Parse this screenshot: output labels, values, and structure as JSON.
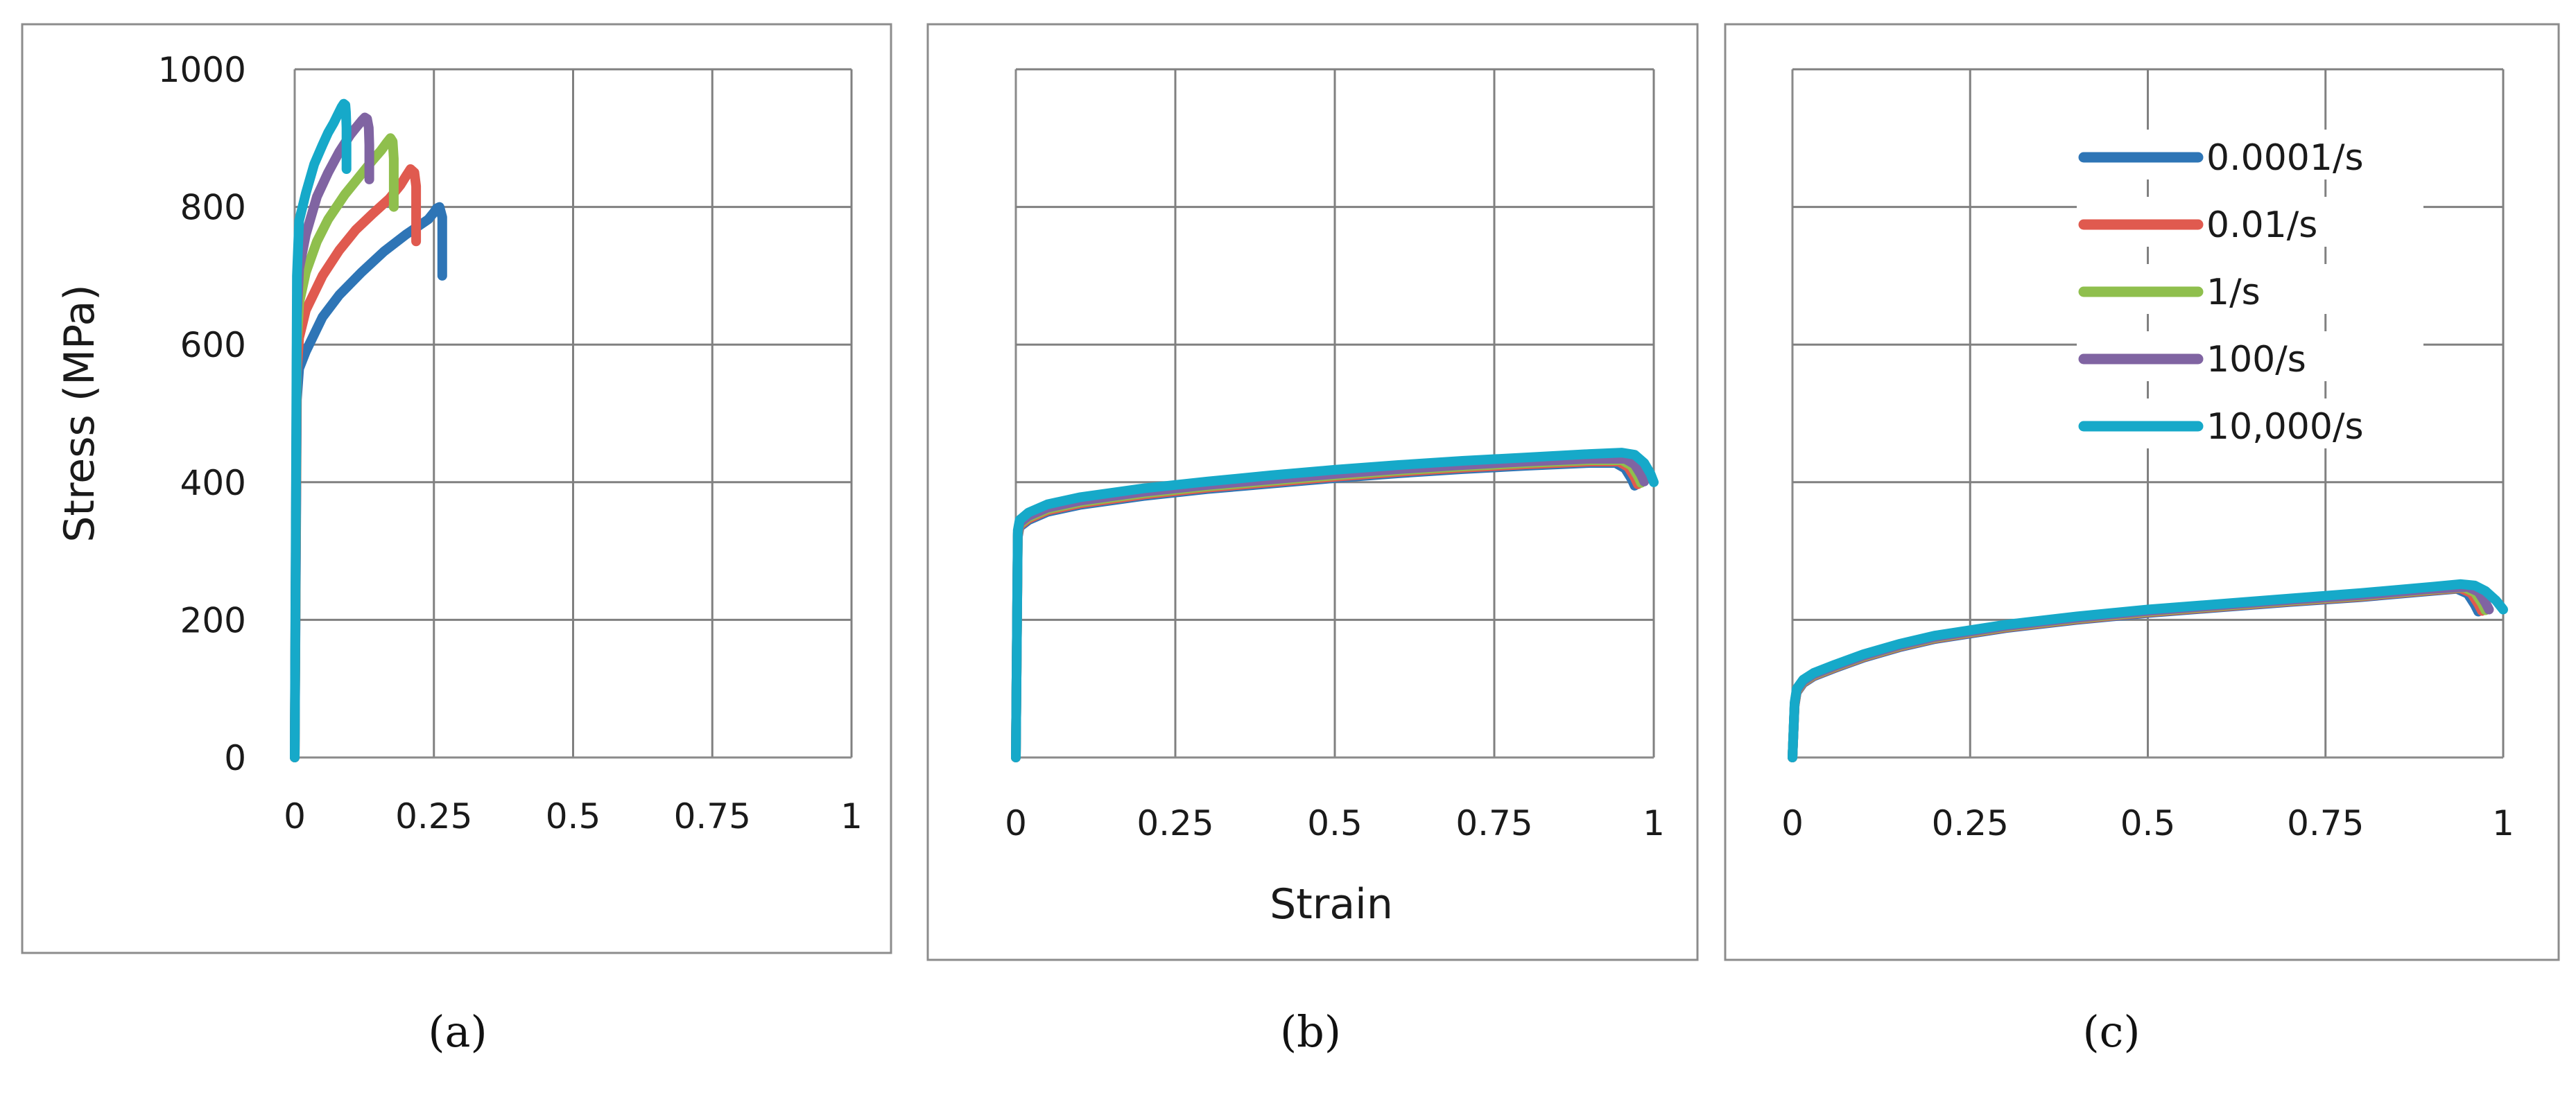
{
  "colors": {
    "frame": "#8c8c8c",
    "grid": "#808080",
    "axis": "#8a8a8a",
    "text": "#1a1a1a"
  },
  "captions": [
    "(a)",
    "(b)",
    "(c)"
  ],
  "chart_data": [
    {
      "type": "line",
      "title": "",
      "xlabel": "",
      "ylabel": "Stress (MPa)",
      "xlim": [
        0,
        1
      ],
      "ylim": [
        0,
        1000
      ],
      "x_ticks": [
        "0",
        "0.25",
        "0.5",
        "0.75",
        "1"
      ],
      "y_ticks": [
        "0",
        "200",
        "400",
        "600",
        "800",
        "1000"
      ],
      "show_y_tick_labels": true,
      "grid": true,
      "legend": null,
      "series": [
        {
          "name": "0.0001/s",
          "color": "#2e75b6",
          "x": [
            0,
            0.004,
            0.008,
            0.02,
            0.05,
            0.08,
            0.12,
            0.16,
            0.2,
            0.24,
            0.25,
            0.255,
            0.26,
            0.265,
            0.265,
            0.265
          ],
          "y": [
            0,
            520,
            565,
            590,
            640,
            672,
            705,
            735,
            760,
            782,
            792,
            798,
            800,
            785,
            740,
            700
          ]
        },
        {
          "name": "0.01/s",
          "color": "#e05a4f",
          "x": [
            0,
            0.004,
            0.008,
            0.02,
            0.05,
            0.08,
            0.11,
            0.14,
            0.17,
            0.19,
            0.2,
            0.208,
            0.215,
            0.218,
            0.218,
            0.218
          ],
          "y": [
            0,
            560,
            610,
            650,
            700,
            737,
            767,
            790,
            812,
            832,
            845,
            855,
            850,
            830,
            790,
            750
          ]
        },
        {
          "name": "1/s",
          "color": "#8fbf4d",
          "x": [
            0,
            0.004,
            0.008,
            0.02,
            0.04,
            0.06,
            0.09,
            0.12,
            0.14,
            0.155,
            0.165,
            0.172,
            0.176,
            0.178,
            0.178,
            0.178
          ],
          "y": [
            0,
            600,
            660,
            705,
            750,
            782,
            818,
            848,
            868,
            882,
            893,
            900,
            895,
            870,
            830,
            800
          ]
        },
        {
          "name": "100/s",
          "color": "#8064a2",
          "x": [
            0,
            0.004,
            0.008,
            0.02,
            0.04,
            0.06,
            0.08,
            0.1,
            0.11,
            0.12,
            0.126,
            0.13,
            0.133,
            0.134,
            0.134,
            0.134
          ],
          "y": [
            0,
            640,
            710,
            760,
            815,
            850,
            880,
            905,
            915,
            925,
            930,
            928,
            915,
            890,
            860,
            840
          ]
        },
        {
          "name": "10,000/s",
          "color": "#16a9c9",
          "x": [
            0,
            0.004,
            0.008,
            0.02,
            0.035,
            0.05,
            0.06,
            0.07,
            0.078,
            0.084,
            0.088,
            0.091,
            0.092,
            0.093,
            0.093,
            0.093
          ],
          "y": [
            0,
            700,
            780,
            820,
            862,
            890,
            908,
            922,
            935,
            945,
            950,
            948,
            938,
            915,
            880,
            855
          ]
        }
      ]
    },
    {
      "type": "line",
      "title": "",
      "xlabel": "Strain",
      "ylabel": "",
      "xlim": [
        0,
        1
      ],
      "ylim": [
        0,
        1000
      ],
      "x_ticks": [
        "0",
        "0.25",
        "0.5",
        "0.75",
        "1"
      ],
      "y_ticks": [
        "0",
        "200",
        "400",
        "600",
        "800",
        "1000"
      ],
      "show_y_tick_labels": false,
      "grid": true,
      "legend": null,
      "series": [
        {
          "name": "0.0001/s",
          "color": "#2e75b6",
          "x": [
            0,
            0.003,
            0.006,
            0.02,
            0.05,
            0.1,
            0.2,
            0.3,
            0.4,
            0.5,
            0.6,
            0.7,
            0.8,
            0.9,
            0.94,
            0.955,
            0.965,
            0.97
          ],
          "y": [
            0,
            320,
            335,
            345,
            357,
            367,
            380,
            390,
            398,
            406,
            413,
            419,
            424,
            428,
            428,
            420,
            405,
            395
          ]
        },
        {
          "name": "0.01/s",
          "color": "#e05a4f",
          "x": [
            0,
            0.003,
            0.006,
            0.02,
            0.05,
            0.1,
            0.2,
            0.3,
            0.4,
            0.5,
            0.6,
            0.7,
            0.8,
            0.9,
            0.945,
            0.96,
            0.97,
            0.975
          ],
          "y": [
            0,
            322,
            337,
            347,
            359,
            369,
            382,
            392,
            400,
            408,
            415,
            421,
            426,
            430,
            430,
            422,
            407,
            397
          ]
        },
        {
          "name": "1/s",
          "color": "#8fbf4d",
          "x": [
            0,
            0.003,
            0.006,
            0.02,
            0.05,
            0.1,
            0.2,
            0.3,
            0.4,
            0.5,
            0.6,
            0.7,
            0.8,
            0.9,
            0.95,
            0.965,
            0.975,
            0.98
          ],
          "y": [
            0,
            324,
            339,
            349,
            361,
            371,
            384,
            394,
            402,
            410,
            417,
            423,
            428,
            432,
            432,
            424,
            409,
            399
          ]
        },
        {
          "name": "100/s",
          "color": "#8064a2",
          "x": [
            0,
            0.003,
            0.006,
            0.02,
            0.05,
            0.1,
            0.2,
            0.3,
            0.4,
            0.5,
            0.6,
            0.7,
            0.8,
            0.9,
            0.955,
            0.97,
            0.98,
            0.985
          ],
          "y": [
            0,
            326,
            341,
            351,
            363,
            373,
            386,
            396,
            404,
            412,
            419,
            425,
            430,
            434,
            434,
            426,
            411,
            401
          ]
        },
        {
          "name": "10,000/s",
          "color": "#16a9c9",
          "x": [
            0,
            0.003,
            0.006,
            0.02,
            0.05,
            0.1,
            0.2,
            0.3,
            0.4,
            0.5,
            0.6,
            0.7,
            0.8,
            0.9,
            0.95,
            0.97,
            0.985,
            0.995,
            1.0
          ],
          "y": [
            0,
            330,
            345,
            356,
            368,
            378,
            391,
            401,
            410,
            418,
            425,
            431,
            436,
            441,
            443,
            440,
            428,
            412,
            400
          ]
        }
      ]
    },
    {
      "type": "line",
      "title": "",
      "xlabel": "",
      "ylabel": "",
      "xlim": [
        0,
        1
      ],
      "ylim": [
        0,
        1000
      ],
      "x_ticks": [
        "0",
        "0.25",
        "0.5",
        "0.75",
        "1"
      ],
      "y_ticks": [
        "0",
        "200",
        "400",
        "600",
        "800",
        "1000"
      ],
      "show_y_tick_labels": false,
      "grid": true,
      "legend": "top-right",
      "series": [
        {
          "name": "0.0001/s",
          "color": "#2e75b6",
          "x": [
            0,
            0.003,
            0.006,
            0.015,
            0.03,
            0.06,
            0.1,
            0.15,
            0.2,
            0.3,
            0.4,
            0.5,
            0.6,
            0.7,
            0.8,
            0.9,
            0.935,
            0.95,
            0.96,
            0.965
          ],
          "y": [
            0,
            75,
            95,
            108,
            118,
            130,
            145,
            160,
            172,
            188,
            200,
            210,
            218,
            226,
            233,
            242,
            245,
            238,
            222,
            212
          ]
        },
        {
          "name": "0.01/s",
          "color": "#e05a4f",
          "x": [
            0,
            0.003,
            0.006,
            0.015,
            0.03,
            0.06,
            0.1,
            0.15,
            0.2,
            0.3,
            0.4,
            0.5,
            0.6,
            0.7,
            0.8,
            0.9,
            0.94,
            0.955,
            0.965,
            0.97
          ],
          "y": [
            0,
            76,
            96,
            109,
            119,
            131,
            146,
            161,
            173,
            189,
            201,
            211,
            219,
            227,
            234,
            243,
            246,
            239,
            223,
            213
          ]
        },
        {
          "name": "1/s",
          "color": "#8fbf4d",
          "x": [
            0,
            0.003,
            0.006,
            0.015,
            0.03,
            0.06,
            0.1,
            0.15,
            0.2,
            0.3,
            0.4,
            0.5,
            0.6,
            0.7,
            0.8,
            0.9,
            0.945,
            0.96,
            0.97,
            0.975
          ],
          "y": [
            0,
            77,
            97,
            110,
            120,
            132,
            147,
            162,
            174,
            190,
            202,
            212,
            220,
            228,
            235,
            244,
            247,
            240,
            224,
            214
          ]
        },
        {
          "name": "100/s",
          "color": "#8064a2",
          "x": [
            0,
            0.003,
            0.006,
            0.015,
            0.03,
            0.06,
            0.1,
            0.15,
            0.2,
            0.3,
            0.4,
            0.5,
            0.6,
            0.7,
            0.8,
            0.9,
            0.95,
            0.965,
            0.975,
            0.98
          ],
          "y": [
            0,
            78,
            98,
            111,
            121,
            133,
            148,
            163,
            175,
            191,
            203,
            213,
            221,
            229,
            236,
            245,
            248,
            241,
            225,
            215
          ]
        },
        {
          "name": "10,000/s",
          "color": "#16a9c9",
          "x": [
            0,
            0.003,
            0.006,
            0.015,
            0.03,
            0.06,
            0.1,
            0.15,
            0.2,
            0.3,
            0.4,
            0.5,
            0.6,
            0.7,
            0.8,
            0.9,
            0.94,
            0.96,
            0.975,
            0.99,
            1.0
          ],
          "y": [
            0,
            80,
            100,
            113,
            123,
            135,
            150,
            165,
            177,
            193,
            205,
            215,
            223,
            231,
            239,
            248,
            252,
            250,
            242,
            228,
            215
          ]
        }
      ]
    }
  ]
}
